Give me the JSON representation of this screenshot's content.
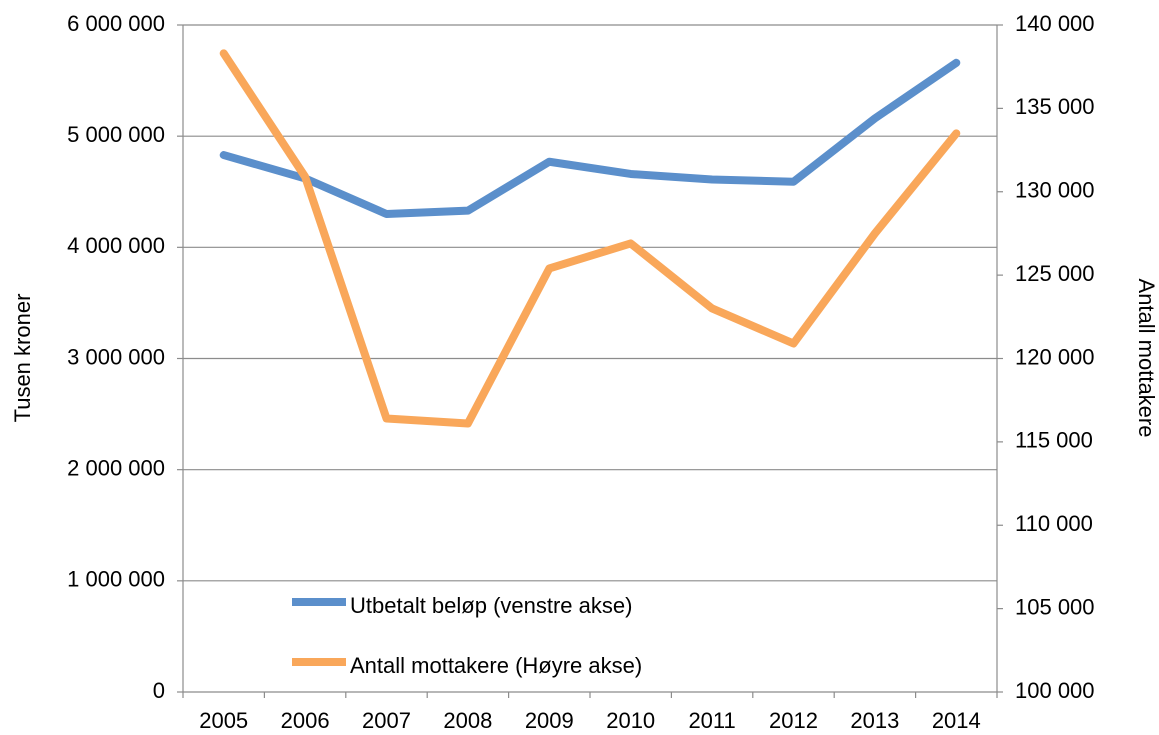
{
  "chart_data": {
    "type": "line",
    "categories": [
      "2005",
      "2006",
      "2007",
      "2008",
      "2009",
      "2010",
      "2011",
      "2012",
      "2013",
      "2014"
    ],
    "series": [
      {
        "name": "Utbetalt beløp (venstre akse)",
        "color": "#5b8fcb",
        "axis": "y",
        "values": [
          4830000,
          4620000,
          4300000,
          4330000,
          4770000,
          4660000,
          4610000,
          4590000,
          5160000,
          5660000
        ]
      },
      {
        "name": "Antall mottakere (Høyre akse)",
        "color": "#f9a75a",
        "axis": "y2",
        "values": [
          138300,
          130900,
          116400,
          116100,
          125400,
          126900,
          123000,
          120900,
          127500,
          133500
        ]
      }
    ],
    "ylabel": "Tusen kroner",
    "y2label": "Antall mottakere",
    "ylim": [
      0,
      6000000
    ],
    "yticks": [
      0,
      {
        "value": 1000000,
        "label": "1 000 000"
      },
      {
        "value": 2000000,
        "label": "2 000 000"
      },
      {
        "value": 3000000,
        "label": "3 000 000"
      },
      {
        "value": 4000000,
        "label": "4 000 000"
      },
      {
        "value": 5000000,
        "label": "5 000 000"
      },
      {
        "value": 6000000,
        "label": "6 000 000"
      }
    ],
    "y2lim": [
      100000,
      140000
    ],
    "y2ticks": [
      {
        "value": 100000,
        "label": "100 000"
      },
      {
        "value": 105000,
        "label": "105 000"
      },
      {
        "value": 110000,
        "label": "110 000"
      },
      {
        "value": 115000,
        "label": "115 000"
      },
      {
        "value": 120000,
        "label": "120 000"
      },
      {
        "value": 125000,
        "label": "125 000"
      },
      {
        "value": 130000,
        "label": "130 000"
      },
      {
        "value": 135000,
        "label": "135 000"
      },
      {
        "value": 140000,
        "label": "140 000"
      }
    ],
    "grid": true
  }
}
